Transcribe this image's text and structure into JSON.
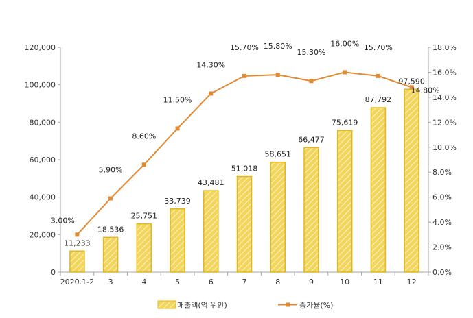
{
  "chart_data": {
    "type": "bar",
    "categories": [
      "2020.1-2",
      "3",
      "4",
      "5",
      "6",
      "7",
      "8",
      "9",
      "10",
      "11",
      "12"
    ],
    "series": [
      {
        "name": "매출액(억 위안)",
        "type": "bar",
        "axis": "left",
        "values": [
          11233,
          18536,
          25751,
          33739,
          43481,
          51018,
          58651,
          66477,
          75619,
          87792,
          97590
        ],
        "labels": [
          "11,233",
          "18,536",
          "25,751",
          "33,739",
          "43,481",
          "51,018",
          "58,651",
          "66,477",
          "75,619",
          "87,792",
          "97,590"
        ]
      },
      {
        "name": "증가율(%)",
        "type": "line",
        "axis": "right",
        "values": [
          3.0,
          5.9,
          8.6,
          11.5,
          14.3,
          15.7,
          15.8,
          15.3,
          16.0,
          15.7,
          14.8
        ],
        "labels": [
          "3.00%",
          "5.90%",
          "8.60%",
          "11.50%",
          "14.30%",
          "15.70%",
          "15.80%",
          "15.30%",
          "16.00%",
          "15.70%",
          "14.80%"
        ]
      }
    ],
    "ylim": [
      0,
      120000
    ],
    "y2lim": [
      0,
      18
    ],
    "y_ticks": [
      "0",
      "20,000",
      "40,000",
      "60,000",
      "80,000",
      "100,000",
      "120,000"
    ],
    "y2_ticks": [
      "0.0%",
      "2.0%",
      "4.0%",
      "6.0%",
      "8.0%",
      "10.0%",
      "12.0%",
      "14.0%",
      "16.0%",
      "18.0%"
    ],
    "grid": false,
    "legend_position": "bottom",
    "colors": {
      "bar_fill": "#F2D55C",
      "bar_stripe": "#FBEFB6",
      "bar_border": "#E2B71B",
      "line": "#E08A33",
      "axis": "#A6A6A6"
    }
  }
}
